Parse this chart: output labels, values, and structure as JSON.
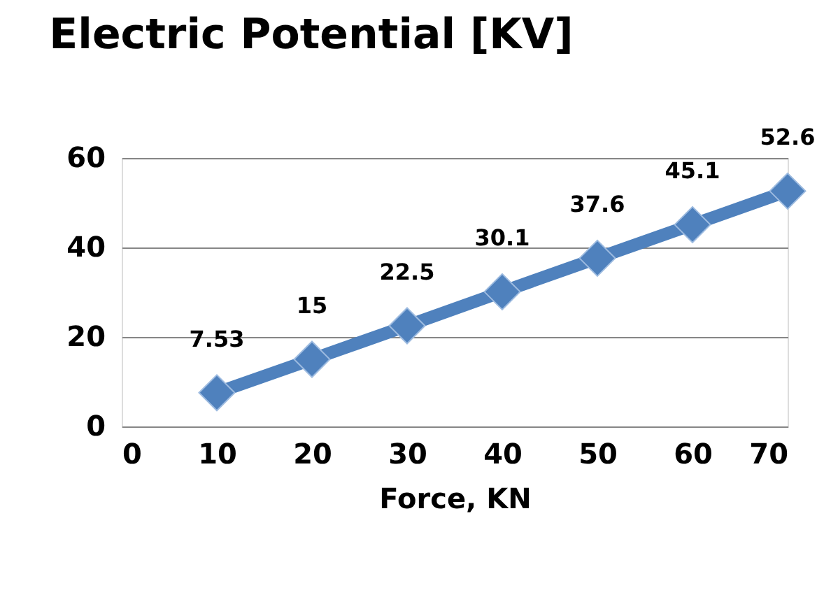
{
  "chart_data": {
    "type": "line",
    "title": "Electric Potential [KV]",
    "xlabel": "Force, KN",
    "x": [
      10,
      20,
      30,
      40,
      50,
      60,
      70
    ],
    "series": [
      {
        "color": "#4f81bd",
        "values": [
          7.53,
          15,
          22.5,
          30.1,
          37.6,
          45.1,
          52.6
        ]
      }
    ],
    "xlim": [
      0,
      70
    ],
    "xticks": [
      0,
      10,
      20,
      30,
      40,
      50,
      60,
      70
    ],
    "ylim": [
      0,
      60
    ],
    "yticks": [
      0,
      20,
      40,
      60
    ],
    "grid": "y",
    "marker": "diamond",
    "line_style": "solid",
    "data_labels": true
  }
}
